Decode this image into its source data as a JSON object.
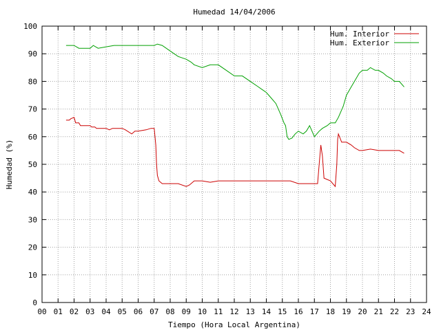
{
  "chart_data": {
    "type": "line",
    "title": "Humedad 14/04/2006",
    "xlabel": "Tiempo (Hora Local Argentina)",
    "ylabel": "Humedad (%)",
    "xlim": [
      0,
      24
    ],
    "ylim": [
      0,
      100
    ],
    "x_tick_labels": [
      "00",
      "01",
      "02",
      "03",
      "04",
      "05",
      "06",
      "07",
      "08",
      "09",
      "10",
      "11",
      "12",
      "13",
      "14",
      "15",
      "16",
      "17",
      "18",
      "19",
      "20",
      "21",
      "22",
      "23",
      "24"
    ],
    "y_tick_labels": [
      "0",
      "10",
      "20",
      "30",
      "40",
      "50",
      "60",
      "70",
      "80",
      "90",
      "100"
    ],
    "grid": true,
    "legend_position": "top-right",
    "series": [
      {
        "name": "Hum. Interior",
        "color": "#cc0000",
        "points": [
          [
            1.5,
            66
          ],
          [
            1.7,
            66
          ],
          [
            1.8,
            66.5
          ],
          [
            2.0,
            67
          ],
          [
            2.1,
            65
          ],
          [
            2.3,
            65
          ],
          [
            2.4,
            64
          ],
          [
            3.0,
            64
          ],
          [
            3.1,
            63.5
          ],
          [
            3.3,
            63.5
          ],
          [
            3.4,
            63
          ],
          [
            4.0,
            63
          ],
          [
            4.2,
            62.5
          ],
          [
            4.4,
            63
          ],
          [
            5.0,
            63
          ],
          [
            5.2,
            62.5
          ],
          [
            5.6,
            61
          ],
          [
            5.8,
            62
          ],
          [
            6.0,
            62
          ],
          [
            6.5,
            62.5
          ],
          [
            6.8,
            63
          ],
          [
            7.0,
            63
          ],
          [
            7.1,
            57
          ],
          [
            7.15,
            50
          ],
          [
            7.2,
            46
          ],
          [
            7.3,
            44
          ],
          [
            7.5,
            43
          ],
          [
            8.0,
            43
          ],
          [
            8.5,
            43
          ],
          [
            9.0,
            42
          ],
          [
            9.2,
            42.5
          ],
          [
            9.5,
            44
          ],
          [
            10.0,
            44
          ],
          [
            10.5,
            43.5
          ],
          [
            11.0,
            44
          ],
          [
            12.0,
            44
          ],
          [
            13.0,
            44
          ],
          [
            13.5,
            44
          ],
          [
            14.0,
            44
          ],
          [
            15.0,
            44
          ],
          [
            15.5,
            44
          ],
          [
            16.0,
            43
          ],
          [
            17.0,
            43
          ],
          [
            17.2,
            43
          ],
          [
            17.3,
            50
          ],
          [
            17.4,
            57
          ],
          [
            17.5,
            53
          ],
          [
            17.6,
            45
          ],
          [
            18.0,
            44
          ],
          [
            18.3,
            42
          ],
          [
            18.4,
            50
          ],
          [
            18.45,
            59
          ],
          [
            18.5,
            61
          ],
          [
            18.7,
            58
          ],
          [
            19.0,
            58
          ],
          [
            19.3,
            57
          ],
          [
            19.5,
            56
          ],
          [
            19.8,
            55
          ],
          [
            20.0,
            55
          ],
          [
            20.5,
            55.5
          ],
          [
            21.0,
            55
          ],
          [
            21.5,
            55
          ],
          [
            22.0,
            55
          ],
          [
            22.3,
            55
          ],
          [
            22.6,
            54
          ]
        ]
      },
      {
        "name": "Hum. Exterior",
        "color": "#00a000",
        "points": [
          [
            1.5,
            93
          ],
          [
            2.0,
            93
          ],
          [
            2.3,
            92
          ],
          [
            3.0,
            92
          ],
          [
            3.2,
            93
          ],
          [
            3.5,
            92
          ],
          [
            4.0,
            92.5
          ],
          [
            4.5,
            93
          ],
          [
            5.0,
            93
          ],
          [
            6.0,
            93
          ],
          [
            7.0,
            93
          ],
          [
            7.2,
            93.5
          ],
          [
            7.5,
            93
          ],
          [
            8.0,
            91
          ],
          [
            8.5,
            89
          ],
          [
            9.0,
            88
          ],
          [
            9.3,
            87
          ],
          [
            9.5,
            86
          ],
          [
            10.0,
            85
          ],
          [
            10.5,
            86
          ],
          [
            11.0,
            86
          ],
          [
            11.5,
            84
          ],
          [
            12.0,
            82
          ],
          [
            12.5,
            82
          ],
          [
            13.0,
            80
          ],
          [
            13.5,
            78
          ],
          [
            14.0,
            76
          ],
          [
            14.3,
            74
          ],
          [
            14.6,
            72
          ],
          [
            14.9,
            68
          ],
          [
            15.1,
            65
          ],
          [
            15.2,
            64
          ],
          [
            15.3,
            60
          ],
          [
            15.4,
            59
          ],
          [
            15.6,
            59.5
          ],
          [
            15.8,
            61
          ],
          [
            16.0,
            62
          ],
          [
            16.3,
            61
          ],
          [
            16.5,
            62
          ],
          [
            16.7,
            64
          ],
          [
            17.0,
            60
          ],
          [
            17.3,
            62
          ],
          [
            17.5,
            63
          ],
          [
            17.8,
            64
          ],
          [
            18.0,
            65
          ],
          [
            18.3,
            65
          ],
          [
            18.5,
            67
          ],
          [
            18.8,
            71
          ],
          [
            19.0,
            75
          ],
          [
            19.3,
            78
          ],
          [
            19.5,
            80
          ],
          [
            19.8,
            83
          ],
          [
            20.0,
            84
          ],
          [
            20.3,
            84
          ],
          [
            20.5,
            85
          ],
          [
            20.8,
            84
          ],
          [
            21.0,
            84
          ],
          [
            21.3,
            83
          ],
          [
            21.5,
            82
          ],
          [
            21.8,
            81
          ],
          [
            22.0,
            80
          ],
          [
            22.3,
            80
          ],
          [
            22.6,
            78
          ]
        ]
      }
    ]
  }
}
